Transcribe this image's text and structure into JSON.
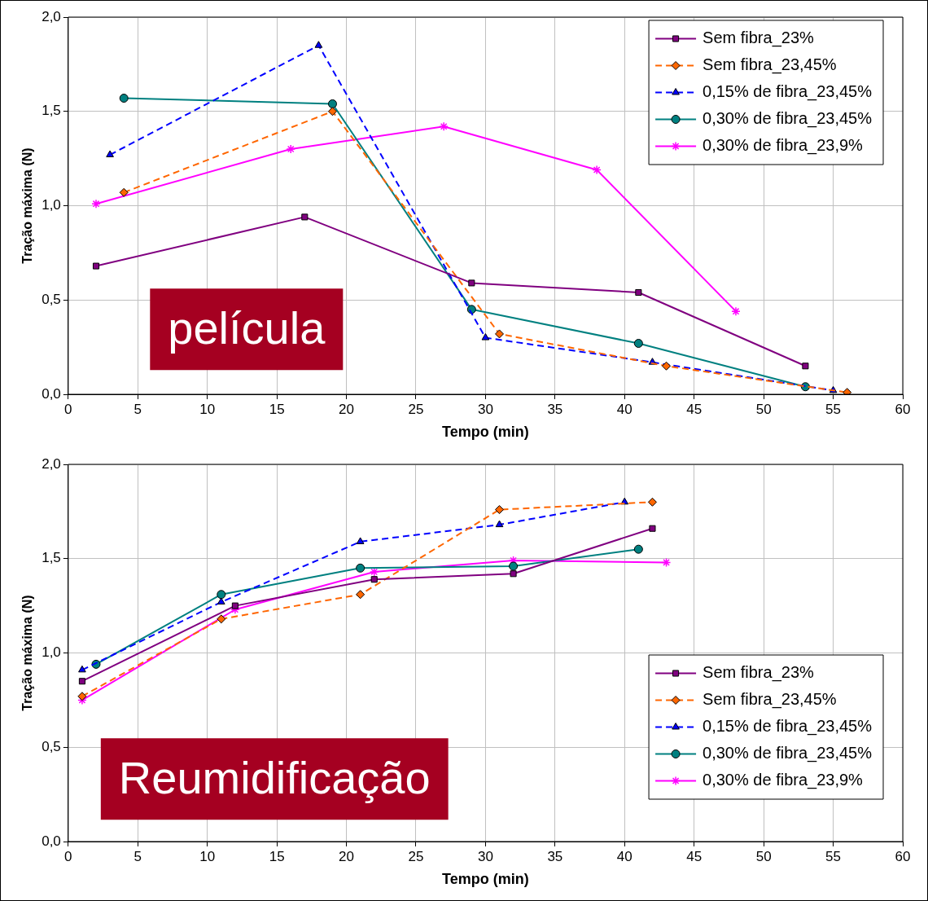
{
  "chart_data": [
    {
      "type": "line",
      "xlabel": "Tempo (min)",
      "ylabel": "Tração máxima (N)",
      "annotations": [
        "película"
      ],
      "xlim": [
        0,
        60
      ],
      "xticks": [
        0,
        5,
        10,
        15,
        20,
        25,
        30,
        35,
        40,
        45,
        50,
        55,
        60
      ],
      "ylim": [
        0,
        2
      ],
      "yticks": [
        {
          "value": 0,
          "label": "0,0"
        },
        {
          "value": 0.5,
          "label": "0,5"
        },
        {
          "value": 1,
          "label": "1,0"
        },
        {
          "value": 1.5,
          "label": "1,5"
        },
        {
          "value": 2,
          "label": "2,0"
        }
      ],
      "grid": true,
      "legend": "top right",
      "series": [
        {
          "name": "Sem fibra_23%",
          "color": "#800080",
          "marker": "square",
          "line_style": "solid",
          "x": [
            2,
            17,
            29,
            41,
            53
          ],
          "values": [
            0.68,
            0.94,
            0.59,
            0.54,
            0.15
          ]
        },
        {
          "name": "Sem fibra_23,45%",
          "color": "#ff6600",
          "marker": "diamond",
          "line_style": "dashed",
          "x": [
            4,
            19,
            31,
            43,
            56
          ],
          "values": [
            1.07,
            1.5,
            0.32,
            0.15,
            0.01
          ]
        },
        {
          "name": "0,15% de fibra_23,45%",
          "color": "#0000ff",
          "marker": "triangle",
          "line_style": "dashed",
          "x": [
            3,
            18,
            30,
            42,
            55
          ],
          "values": [
            1.27,
            1.85,
            0.3,
            0.17,
            0.02
          ]
        },
        {
          "name": "0,30% de fibra_23,45%",
          "color": "#008080",
          "marker": "circle",
          "line_style": "solid",
          "x": [
            4,
            19,
            29,
            41,
            53
          ],
          "values": [
            1.57,
            1.54,
            0.45,
            0.27,
            0.04
          ]
        },
        {
          "name": "0,30% de fibra_23,9%",
          "color": "#ff00ff",
          "marker": "cross",
          "line_style": "solid",
          "x": [
            2,
            16,
            27,
            38,
            48
          ],
          "values": [
            1.01,
            1.3,
            1.42,
            1.19,
            0.44
          ]
        }
      ]
    },
    {
      "type": "line",
      "xlabel": "Tempo (min)",
      "ylabel": "Tração máxima (N)",
      "annotations": [
        "Reumidificação"
      ],
      "xlim": [
        0,
        60
      ],
      "xticks": [
        0,
        5,
        10,
        15,
        20,
        25,
        30,
        35,
        40,
        45,
        50,
        55,
        60
      ],
      "ylim": [
        0,
        2
      ],
      "yticks": [
        {
          "value": 0,
          "label": "0,0"
        },
        {
          "value": 0.5,
          "label": "0,5"
        },
        {
          "value": 1,
          "label": "1,0"
        },
        {
          "value": 1.5,
          "label": "1,5"
        },
        {
          "value": 2,
          "label": "2,0"
        }
      ],
      "grid": true,
      "legend": "bottom right",
      "series": [
        {
          "name": "Sem fibra_23%",
          "color": "#800080",
          "marker": "square",
          "line_style": "solid",
          "x": [
            1,
            12,
            22,
            32,
            42
          ],
          "values": [
            0.85,
            1.25,
            1.39,
            1.42,
            1.66
          ]
        },
        {
          "name": "Sem fibra_23,45%",
          "color": "#ff6600",
          "marker": "diamond",
          "line_style": "dashed",
          "x": [
            1,
            11,
            21,
            31,
            42
          ],
          "values": [
            0.77,
            1.18,
            1.31,
            1.76,
            1.8
          ]
        },
        {
          "name": "0,15% de fibra_23,45%",
          "color": "#0000ff",
          "marker": "triangle",
          "line_style": "dashed",
          "x": [
            1,
            11,
            21,
            31,
            40
          ],
          "values": [
            0.91,
            1.27,
            1.59,
            1.68,
            1.8
          ]
        },
        {
          "name": "0,30% de fibra_23,45%",
          "color": "#008080",
          "marker": "circle",
          "line_style": "solid",
          "x": [
            2,
            11,
            21,
            32,
            41
          ],
          "values": [
            0.94,
            1.31,
            1.45,
            1.46,
            1.55
          ]
        },
        {
          "name": "0,30% de fibra_23,9%",
          "color": "#ff00ff",
          "marker": "cross",
          "line_style": "solid",
          "x": [
            1,
            12,
            22,
            32,
            43
          ],
          "values": [
            0.75,
            1.23,
            1.43,
            1.49,
            1.48
          ]
        }
      ]
    }
  ]
}
